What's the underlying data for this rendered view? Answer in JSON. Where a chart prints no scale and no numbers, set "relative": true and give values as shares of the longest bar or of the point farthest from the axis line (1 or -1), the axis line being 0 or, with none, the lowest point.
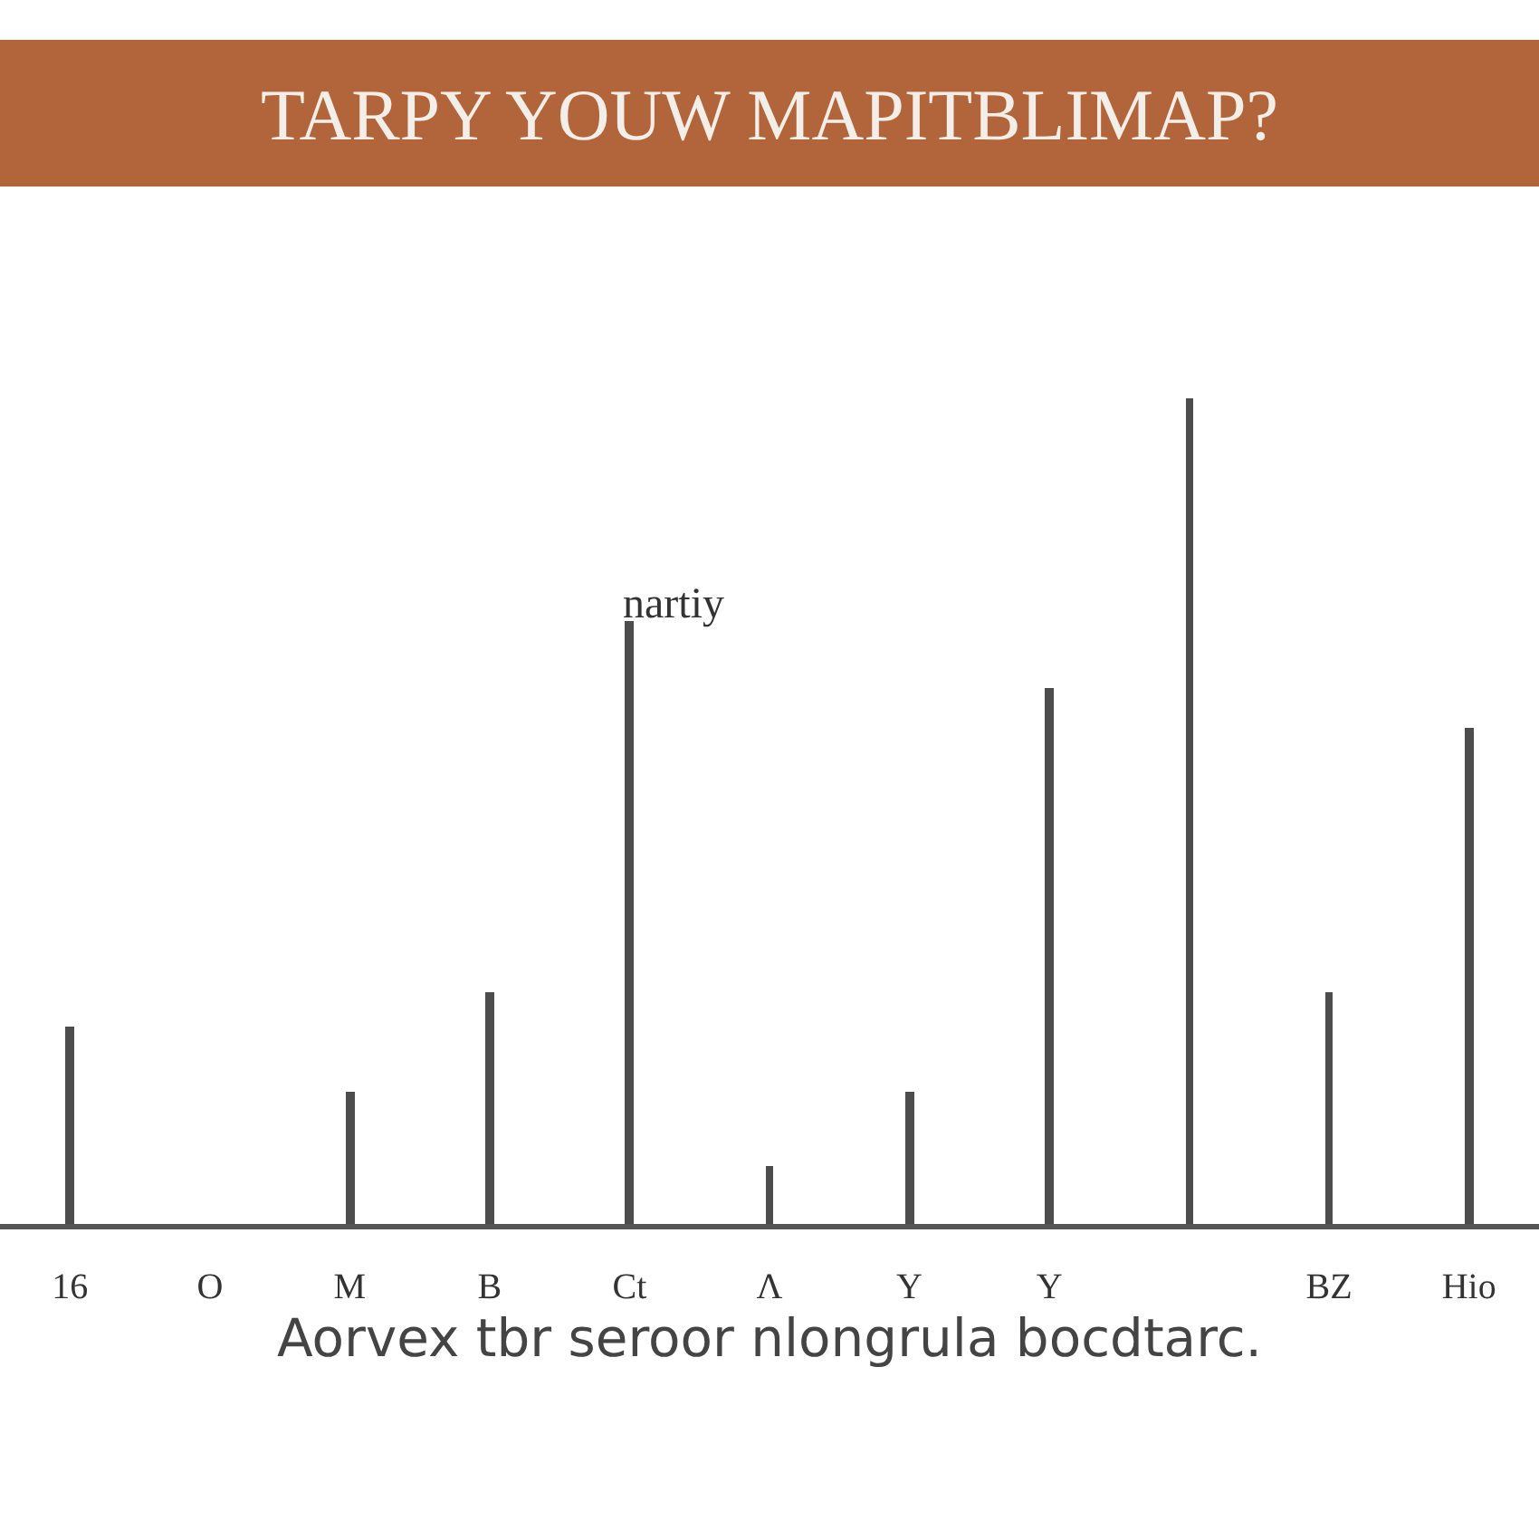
{
  "chart_data": {
    "type": "bar",
    "title": "TARPY YOUW MAPITBLIMAP?",
    "xlabel": "Aorvex tbr seroor nlongrula bocdtarc.",
    "categories": [
      "16",
      "O",
      "M",
      "B",
      "Ct",
      "Λ",
      "Y",
      "Y",
      null,
      "BZ",
      "Hio"
    ],
    "values": [
      0.24,
      0,
      0.16,
      0.28,
      0.73,
      0.07,
      0.16,
      0.65,
      1,
      0.28,
      0.6
    ],
    "color": "#4d4d4d",
    "relative": true,
    "annotations": [
      {
        "text": "nartiy",
        "x": "Ct",
        "y": 0.73
      }
    ]
  }
}
